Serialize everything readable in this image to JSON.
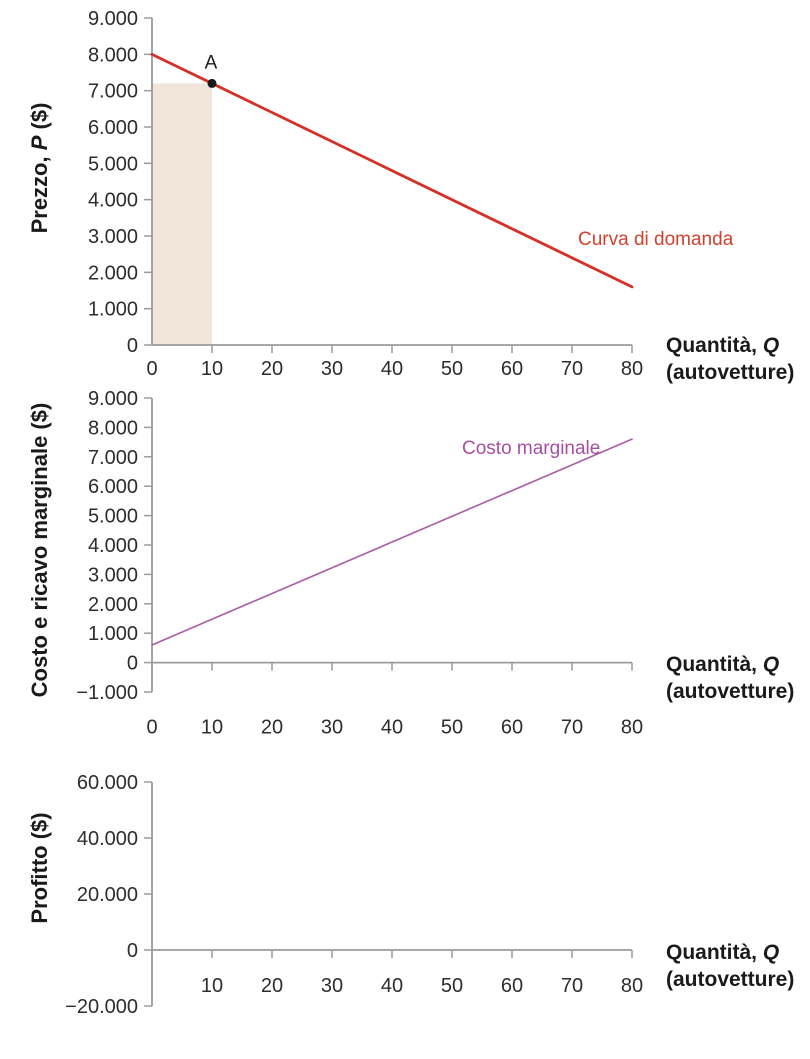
{
  "figure": {
    "background": "#ffffff",
    "axis_color": "#9b9b9b",
    "tick_text_color": "#2d2d2d",
    "title_text_color": "#1a1a1a"
  },
  "chart_data": [
    {
      "type": "line",
      "ylabel": {
        "prefix": "Prezzo, ",
        "symbol": "P",
        "suffix": " ($)"
      },
      "xlabel": {
        "line1_prefix": "Quantità, ",
        "line1_symbol": "Q",
        "line2": "(autovetture)"
      },
      "xlim": [
        0,
        80
      ],
      "ylim": [
        0,
        9000
      ],
      "xticks": [
        {
          "v": 0,
          "label": "0"
        },
        {
          "v": 10,
          "label": "10"
        },
        {
          "v": 20,
          "label": "20"
        },
        {
          "v": 30,
          "label": "30"
        },
        {
          "v": 40,
          "label": "40"
        },
        {
          "v": 50,
          "label": "50"
        },
        {
          "v": 60,
          "label": "60"
        },
        {
          "v": 70,
          "label": "70"
        },
        {
          "v": 80,
          "label": "80"
        }
      ],
      "yticks": [
        {
          "v": 9000,
          "label": "9.000"
        },
        {
          "v": 8000,
          "label": "8.000"
        },
        {
          "v": 7000,
          "label": "7.000"
        },
        {
          "v": 6000,
          "label": "6.000"
        },
        {
          "v": 5000,
          "label": "5.000"
        },
        {
          "v": 4000,
          "label": "4.000"
        },
        {
          "v": 3000,
          "label": "3.000"
        },
        {
          "v": 2000,
          "label": "2.000"
        },
        {
          "v": 1000,
          "label": "1.000"
        },
        {
          "v": 0,
          "label": "0"
        }
      ],
      "series": [
        {
          "name": "Curva di domanda",
          "color": "#d43026",
          "label_color": "#d2402e",
          "width": 2.8,
          "points": [
            [
              0,
              8000
            ],
            [
              80,
              1600
            ]
          ]
        }
      ],
      "shaded_region": {
        "x0": 0,
        "x1": 10,
        "y0": 0,
        "y1": 7200,
        "color": "#f0e5d8"
      },
      "point": {
        "x": 10,
        "y": 7200,
        "label": "A",
        "color": "#1a1a1a"
      }
    },
    {
      "type": "line",
      "ylabel": {
        "prefix": "Costo e ricavo marginale ($)",
        "symbol": "",
        "suffix": ""
      },
      "xlabel": {
        "line1_prefix": "Quantità, ",
        "line1_symbol": "Q",
        "line2": "(autovetture)"
      },
      "xlim": [
        0,
        80
      ],
      "ylim": [
        -1000,
        9000
      ],
      "xticks": [
        {
          "v": 0,
          "label": "0"
        },
        {
          "v": 10,
          "label": "10"
        },
        {
          "v": 20,
          "label": "20"
        },
        {
          "v": 30,
          "label": "30"
        },
        {
          "v": 40,
          "label": "40"
        },
        {
          "v": 50,
          "label": "50"
        },
        {
          "v": 60,
          "label": "60"
        },
        {
          "v": 70,
          "label": "70"
        },
        {
          "v": 80,
          "label": "80"
        }
      ],
      "yticks": [
        {
          "v": 9000,
          "label": "9.000"
        },
        {
          "v": 8000,
          "label": "8.000"
        },
        {
          "v": 7000,
          "label": "7.000"
        },
        {
          "v": 6000,
          "label": "6.000"
        },
        {
          "v": 5000,
          "label": "5.000"
        },
        {
          "v": 4000,
          "label": "4.000"
        },
        {
          "v": 3000,
          "label": "3.000"
        },
        {
          "v": 2000,
          "label": "2.000"
        },
        {
          "v": 1000,
          "label": "1.000"
        },
        {
          "v": 0,
          "label": "0"
        },
        {
          "v": -1000,
          "label": "−1.000"
        }
      ],
      "series": [
        {
          "name": "Costo marginale",
          "color": "#a95ca6",
          "label_color": "#a84fa3",
          "width": 1.6,
          "points": [
            [
              0,
              600
            ],
            [
              80,
              7600
            ]
          ]
        }
      ],
      "shaded_region": null,
      "point": null
    },
    {
      "type": "line",
      "ylabel": {
        "prefix": "Profitto ($)",
        "symbol": "",
        "suffix": ""
      },
      "xlabel": {
        "line1_prefix": "Quantità, ",
        "line1_symbol": "Q",
        "line2": "(autovetture)"
      },
      "xlim": [
        0,
        80
      ],
      "ylim": [
        -20000,
        60000
      ],
      "xticks": [
        {
          "v": 10,
          "label": "10"
        },
        {
          "v": 20,
          "label": "20"
        },
        {
          "v": 30,
          "label": "30"
        },
        {
          "v": 40,
          "label": "40"
        },
        {
          "v": 50,
          "label": "50"
        },
        {
          "v": 60,
          "label": "60"
        },
        {
          "v": 70,
          "label": "70"
        },
        {
          "v": 80,
          "label": "80"
        }
      ],
      "yticks": [
        {
          "v": 60000,
          "label": "60.000"
        },
        {
          "v": 40000,
          "label": "40.000"
        },
        {
          "v": 20000,
          "label": "20.000"
        },
        {
          "v": 0,
          "label": "0"
        },
        {
          "v": -20000,
          "label": "−20.000"
        }
      ],
      "series": [],
      "shaded_region": null,
      "point": null
    }
  ]
}
